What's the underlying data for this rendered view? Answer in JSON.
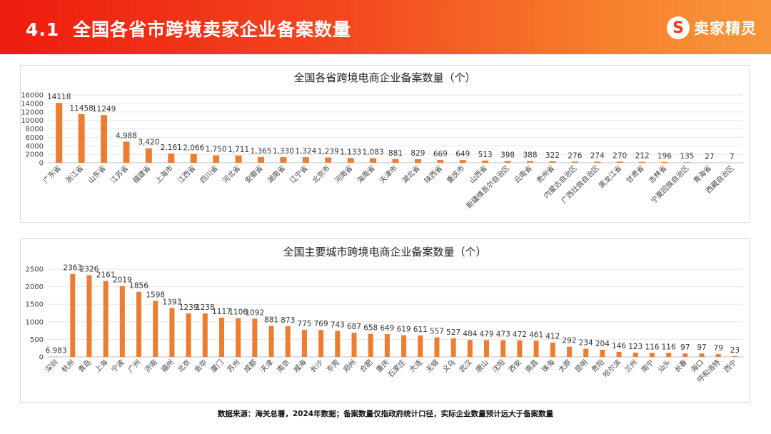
{
  "header": {
    "section_number": "4.1",
    "section_title": "全国各省市跨境卖家企业备案数量",
    "brand_icon": "S",
    "brand_name": "卖家精灵",
    "colors": {
      "gradient_start": "#ee1c0f",
      "gradient_end": "#f9963a",
      "bar": "#ed7d31"
    }
  },
  "footnote": "数据来源：海关总署，2024年数据；备案数量仅指政府统计口径，实际企业数量预计远大于备案数量",
  "chart_data": [
    {
      "type": "bar",
      "title": "全国各省跨境电商企业备案数量（个）",
      "ylim": [
        0,
        16000
      ],
      "yticks": [
        0,
        2000,
        4000,
        6000,
        8000,
        10000,
        12000,
        14000,
        16000
      ],
      "grid": true,
      "categories": [
        "广东省",
        "浙江省",
        "山东省",
        "江苏省",
        "福建省",
        "上海市",
        "江西省",
        "四川省",
        "河北省",
        "安徽省",
        "湖南省",
        "辽宁省",
        "北京市",
        "河南省",
        "海南省",
        "天津市",
        "湖北省",
        "陕西省",
        "重庆市",
        "山西省",
        "新疆维吾尔自治区",
        "云南省",
        "贵州省",
        "内蒙古自治区",
        "广西壮族自治区",
        "黑龙江省",
        "甘肃省",
        "吉林省",
        "宁夏回族自治区",
        "青海省",
        "西藏自治区"
      ],
      "values": [
        14118,
        11458,
        11249,
        4988,
        3420,
        2161,
        2066,
        1750,
        1711,
        1365,
        1330,
        1324,
        1239,
        1133,
        1083,
        881,
        829,
        669,
        649,
        513,
        398,
        388,
        322,
        276,
        274,
        270,
        212,
        196,
        135,
        27,
        7
      ],
      "value_labels": [
        "14118",
        "11458",
        "11249",
        "4,988",
        "3,420",
        "2,161",
        "2,066",
        "1,750",
        "1,711",
        "1,365",
        "1,330",
        "1,324",
        "1,239",
        "1,133",
        "1,083",
        "881",
        "829",
        "669",
        "649",
        "513",
        "398",
        "388",
        "322",
        "276",
        "274",
        "270",
        "212",
        "196",
        "135",
        "27",
        "7"
      ]
    },
    {
      "type": "bar",
      "title": "全国主要城市跨境电商企业备案数量（个）",
      "ylim": [
        0,
        2500
      ],
      "yticks": [
        0,
        500,
        1000,
        1500,
        2000,
        2500
      ],
      "grid": true,
      "categories": [
        "深圳",
        "杭州",
        "青岛",
        "上海",
        "宁波",
        "广州",
        "济南",
        "福州",
        "北京",
        "金华",
        "厦门",
        "苏州",
        "成都",
        "天津",
        "南京",
        "威海",
        "长沙",
        "东莞",
        "郑州",
        "合肥",
        "重庆",
        "石家庄",
        "大连",
        "无锡",
        "义乌",
        "武汉",
        "唐山",
        "沈阳",
        "西安",
        "南昌",
        "珠海",
        "太原",
        "昆明",
        "贵阳",
        "哈尔滨",
        "兰州",
        "南宁",
        "汕头",
        "长春",
        "海口",
        "呼和浩特",
        "西宁"
      ],
      "values": [
        6.983,
        2363,
        2326,
        2161,
        2019,
        1856,
        1598,
        1393,
        1239,
        1238,
        1117,
        1106,
        1092,
        881,
        873,
        775,
        769,
        743,
        687,
        658,
        649,
        619,
        611,
        557,
        527,
        484,
        479,
        473,
        472,
        461,
        412,
        292,
        234,
        204,
        146,
        123,
        116,
        116,
        97,
        97,
        79,
        23
      ],
      "value_labels": [
        "6.983",
        "2363",
        "2326",
        "2161",
        "2019",
        "1856",
        "1598",
        "1393",
        "1239",
        "1238",
        "1117",
        "1106",
        "1092",
        "881",
        "873",
        "775",
        "769",
        "743",
        "687",
        "658",
        "649",
        "619",
        "611",
        "557",
        "527",
        "484",
        "479",
        "473",
        "472",
        "461",
        "412",
        "292",
        "234",
        "204",
        "146",
        "123",
        "116",
        "116",
        "97",
        "97",
        "79",
        "23"
      ]
    }
  ]
}
